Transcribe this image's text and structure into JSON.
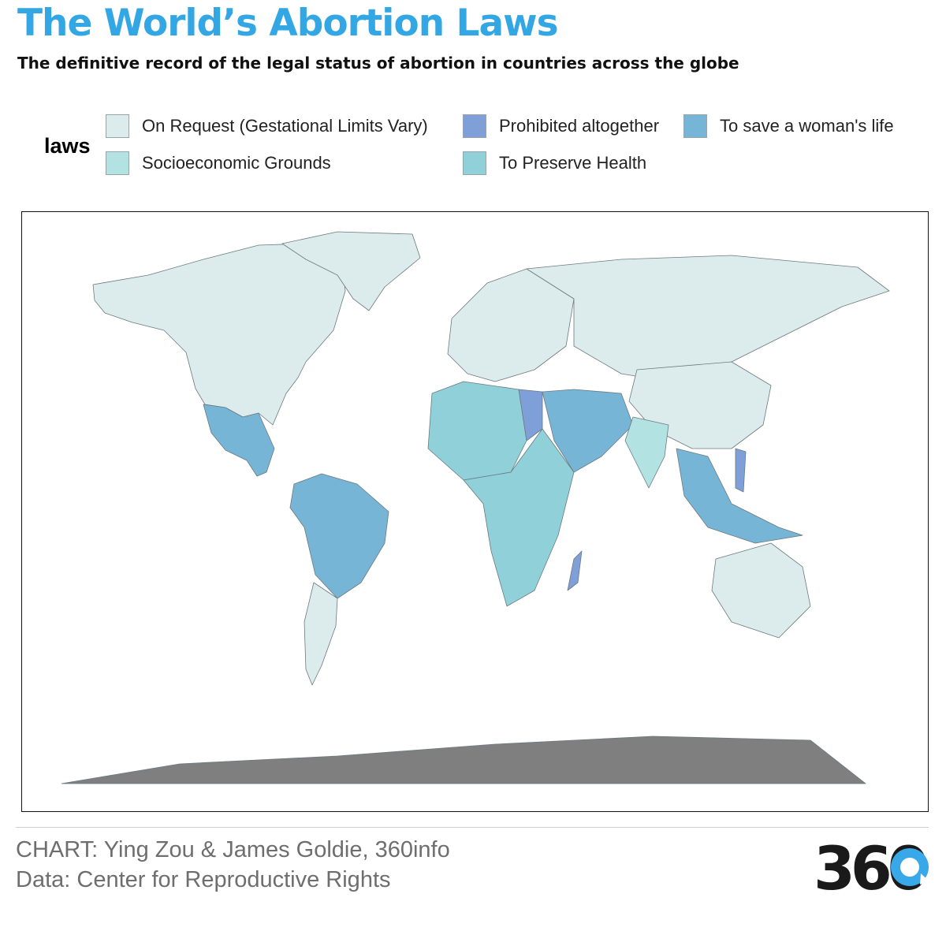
{
  "header": {
    "title": "The World’s Abortion Laws",
    "subtitle": "The definitive record of the legal status of abortion in countries across the globe"
  },
  "legend": {
    "title": "laws",
    "items": [
      {
        "key": "on_request",
        "label": "On Request (Gestational Limits Vary)",
        "color": "#dcecec"
      },
      {
        "key": "socioeconomic",
        "label": "Socioeconomic Grounds",
        "color": "#b3e2e2"
      },
      {
        "key": "prohibited",
        "label": "Prohibited altogether",
        "color": "#7f9fd9"
      },
      {
        "key": "preserve_health",
        "label": "To Preserve Health",
        "color": "#8fd0d9"
      },
      {
        "key": "save_life",
        "label": "To save a woman's life",
        "color": "#77b5d6"
      }
    ]
  },
  "map": {
    "antarctica_color": "#7f7f7f",
    "border_color": "#6b7a80",
    "regions": [
      {
        "name": "north-america",
        "law": "on_request"
      },
      {
        "name": "greenland",
        "law": "on_request"
      },
      {
        "name": "mexico-central-america",
        "law": "save_life"
      },
      {
        "name": "south-america-north",
        "law": "save_life"
      },
      {
        "name": "south-america-south",
        "law": "on_request"
      },
      {
        "name": "europe",
        "law": "on_request"
      },
      {
        "name": "russia-central-asia",
        "law": "on_request"
      },
      {
        "name": "north-africa",
        "law": "preserve_health"
      },
      {
        "name": "egypt",
        "law": "prohibited"
      },
      {
        "name": "sub-saharan-africa",
        "law": "preserve_health"
      },
      {
        "name": "middle-east",
        "law": "save_life"
      },
      {
        "name": "india",
        "law": "socioeconomic"
      },
      {
        "name": "china",
        "law": "on_request"
      },
      {
        "name": "southeast-asia",
        "law": "save_life"
      },
      {
        "name": "australia",
        "law": "on_request"
      },
      {
        "name": "madagascar",
        "law": "prohibited"
      },
      {
        "name": "philippines",
        "law": "prohibited"
      }
    ]
  },
  "footer": {
    "chart_credit": "CHART: Ying Zou & James Goldie, 360info",
    "data_credit": "Data: Center for Reproductive Rights",
    "logo_text": "360"
  }
}
